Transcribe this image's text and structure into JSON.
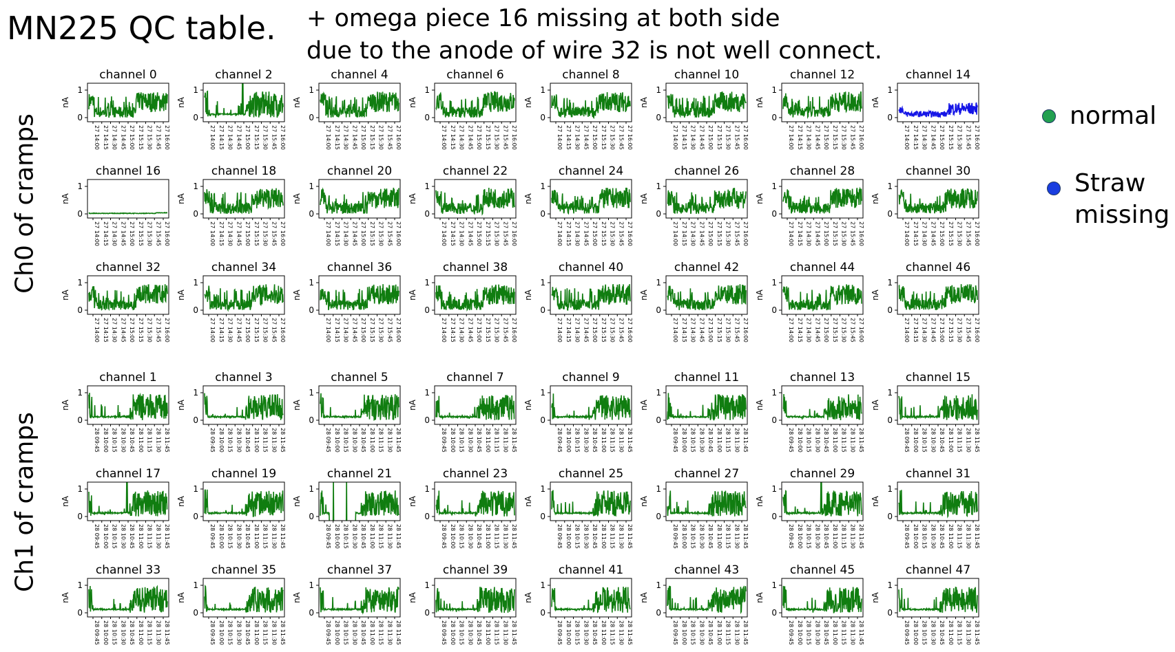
{
  "header": {
    "title": "MN225 QC table.",
    "note_line1": "+ omega piece 16 missing at both side",
    "note_line2": "due to the anode of wire 32 is not well connect."
  },
  "groups": [
    {
      "label": "Ch0 of cramps"
    },
    {
      "label": "Ch1 of cramps"
    }
  ],
  "legend": [
    {
      "label": "normal",
      "color": "#22a050"
    },
    {
      "label_line1": "Straw",
      "label_line2": "missing",
      "color": "#1a3ee0"
    }
  ],
  "colors": {
    "normal": "#107d10",
    "straw_missing": "#1515e6"
  },
  "chart_data": [
    {
      "type": "line",
      "group": "Ch0 of cramps",
      "ylabel": "nA",
      "yticks": [
        "0",
        "1"
      ],
      "ylim": [
        -0.15,
        1.25
      ],
      "xticks": [
        "27 14:00",
        "27 14:15",
        "27 14:30",
        "27 14:45",
        "27 15:00",
        "27 15:15",
        "27 15:30",
        "27 15:45",
        "27 16:00"
      ],
      "panels": [
        {
          "title": "channel 0",
          "status": "normal",
          "pattern": "a"
        },
        {
          "title": "channel 2",
          "status": "normal",
          "pattern": "spike"
        },
        {
          "title": "channel 4",
          "status": "normal",
          "pattern": "a"
        },
        {
          "title": "channel 6",
          "status": "normal",
          "pattern": "a"
        },
        {
          "title": "channel 8",
          "status": "normal",
          "pattern": "a"
        },
        {
          "title": "channel 10",
          "status": "normal",
          "pattern": "a"
        },
        {
          "title": "channel 12",
          "status": "normal",
          "pattern": "a"
        },
        {
          "title": "channel 14",
          "status": "straw_missing",
          "pattern": "low"
        },
        {
          "title": "channel 16",
          "status": "normal",
          "pattern": "flat"
        },
        {
          "title": "channel 18",
          "status": "normal",
          "pattern": "a"
        },
        {
          "title": "channel 20",
          "status": "normal",
          "pattern": "a"
        },
        {
          "title": "channel 22",
          "status": "normal",
          "pattern": "a"
        },
        {
          "title": "channel 24",
          "status": "normal",
          "pattern": "a"
        },
        {
          "title": "channel 26",
          "status": "normal",
          "pattern": "a"
        },
        {
          "title": "channel 28",
          "status": "normal",
          "pattern": "a"
        },
        {
          "title": "channel 30",
          "status": "normal",
          "pattern": "a"
        },
        {
          "title": "channel 32",
          "status": "normal",
          "pattern": "a"
        },
        {
          "title": "channel 34",
          "status": "normal",
          "pattern": "a"
        },
        {
          "title": "channel 36",
          "status": "normal",
          "pattern": "a"
        },
        {
          "title": "channel 38",
          "status": "normal",
          "pattern": "a"
        },
        {
          "title": "channel 40",
          "status": "normal",
          "pattern": "a"
        },
        {
          "title": "channel 42",
          "status": "normal",
          "pattern": "a"
        },
        {
          "title": "channel 44",
          "status": "normal",
          "pattern": "a"
        },
        {
          "title": "channel 46",
          "status": "normal",
          "pattern": "a"
        }
      ]
    },
    {
      "type": "line",
      "group": "Ch1 of cramps",
      "ylabel": "nA",
      "yticks": [
        "0",
        "1"
      ],
      "ylim": [
        -0.15,
        1.25
      ],
      "xticks": [
        "28 09:45",
        "28 10:00",
        "28 10:15",
        "28 10:30",
        "28 10:45",
        "28 11:00",
        "28 11:15",
        "28 11:30",
        "28 11:45"
      ],
      "panels": [
        {
          "title": "channel 1",
          "status": "normal",
          "pattern": "b"
        },
        {
          "title": "channel 3",
          "status": "normal",
          "pattern": "b"
        },
        {
          "title": "channel 5",
          "status": "normal",
          "pattern": "b"
        },
        {
          "title": "channel 7",
          "status": "normal",
          "pattern": "b"
        },
        {
          "title": "channel 9",
          "status": "normal",
          "pattern": "b"
        },
        {
          "title": "channel 11",
          "status": "normal",
          "pattern": "b"
        },
        {
          "title": "channel 13",
          "status": "normal",
          "pattern": "b"
        },
        {
          "title": "channel 15",
          "status": "normal",
          "pattern": "b"
        },
        {
          "title": "channel 17",
          "status": "normal",
          "pattern": "spike"
        },
        {
          "title": "channel 19",
          "status": "normal",
          "pattern": "b"
        },
        {
          "title": "channel 21",
          "status": "normal",
          "pattern": "spike2"
        },
        {
          "title": "channel 23",
          "status": "normal",
          "pattern": "b"
        },
        {
          "title": "channel 25",
          "status": "normal",
          "pattern": "b"
        },
        {
          "title": "channel 27",
          "status": "normal",
          "pattern": "b"
        },
        {
          "title": "channel 29",
          "status": "normal",
          "pattern": "spike"
        },
        {
          "title": "channel 31",
          "status": "normal",
          "pattern": "b"
        },
        {
          "title": "channel 33",
          "status": "normal",
          "pattern": "b"
        },
        {
          "title": "channel 35",
          "status": "normal",
          "pattern": "b"
        },
        {
          "title": "channel 37",
          "status": "normal",
          "pattern": "b"
        },
        {
          "title": "channel 39",
          "status": "normal",
          "pattern": "b"
        },
        {
          "title": "channel 41",
          "status": "normal",
          "pattern": "b"
        },
        {
          "title": "channel 43",
          "status": "normal",
          "pattern": "b"
        },
        {
          "title": "channel 45",
          "status": "normal",
          "pattern": "b"
        },
        {
          "title": "channel 47",
          "status": "normal",
          "pattern": "b"
        }
      ]
    }
  ]
}
